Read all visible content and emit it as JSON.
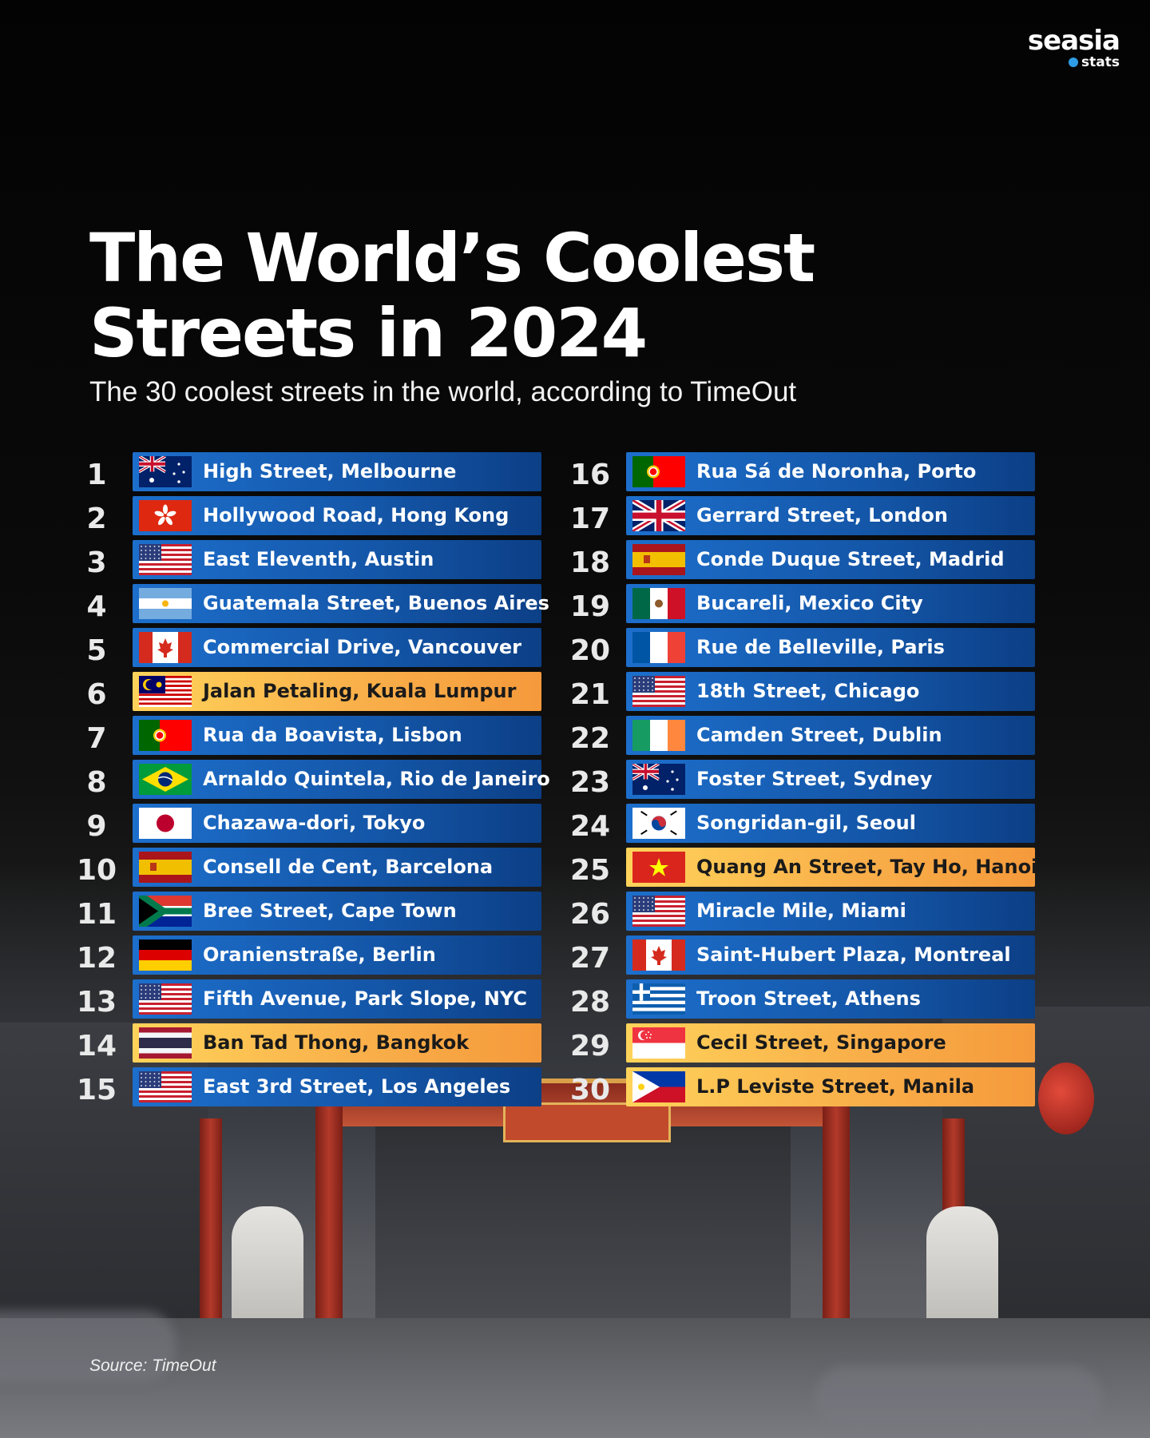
{
  "logo": {
    "brand": "seasia",
    "sub": "stats"
  },
  "header": {
    "title_line1": "The World’s Coolest",
    "title_line2": "Streets in 2024",
    "subtitle": "The 30 coolest streets in the world, according to TimeOut"
  },
  "colors": {
    "bar_blue": "#1456a8",
    "bar_highlight": "#f9b04a",
    "background": "#050505"
  },
  "streets": [
    {
      "rank": "1",
      "name": "High Street, Melbourne",
      "flag": "australia",
      "highlight": false
    },
    {
      "rank": "2",
      "name": "Hollywood Road, Hong Kong",
      "flag": "hong-kong",
      "highlight": false
    },
    {
      "rank": "3",
      "name": "East Eleventh, Austin",
      "flag": "usa",
      "highlight": false
    },
    {
      "rank": "4",
      "name": "Guatemala Street, Buenos Aires",
      "flag": "argentina",
      "highlight": false
    },
    {
      "rank": "5",
      "name": "Commercial Drive, Vancouver",
      "flag": "canada",
      "highlight": false
    },
    {
      "rank": "6",
      "name": "Jalan Petaling, Kuala Lumpur",
      "flag": "malaysia",
      "highlight": true
    },
    {
      "rank": "7",
      "name": "Rua da Boavista, Lisbon",
      "flag": "portugal",
      "highlight": false
    },
    {
      "rank": "8",
      "name": "Arnaldo Quintela, Rio de Janeiro",
      "flag": "brazil",
      "highlight": false
    },
    {
      "rank": "9",
      "name": "Chazawa-dori, Tokyo",
      "flag": "japan",
      "highlight": false
    },
    {
      "rank": "10",
      "name": "Consell de Cent, Barcelona",
      "flag": "spain",
      "highlight": false
    },
    {
      "rank": "11",
      "name": "Bree Street, Cape Town",
      "flag": "south-africa",
      "highlight": false
    },
    {
      "rank": "12",
      "name": "Oranienstraße, Berlin",
      "flag": "germany",
      "highlight": false
    },
    {
      "rank": "13",
      "name": "Fifth Avenue, Park Slope, NYC",
      "flag": "usa",
      "highlight": false
    },
    {
      "rank": "14",
      "name": "Ban Tad Thong, Bangkok",
      "flag": "thailand",
      "highlight": true
    },
    {
      "rank": "15",
      "name": "East 3rd Street, Los Angeles",
      "flag": "usa",
      "highlight": false
    },
    {
      "rank": "16",
      "name": "Rua Sá de Noronha, Porto",
      "flag": "portugal",
      "highlight": false
    },
    {
      "rank": "17",
      "name": "Gerrard Street, London",
      "flag": "uk",
      "highlight": false
    },
    {
      "rank": "18",
      "name": "Conde Duque Street, Madrid",
      "flag": "spain",
      "highlight": false
    },
    {
      "rank": "19",
      "name": "Bucareli, Mexico City",
      "flag": "mexico",
      "highlight": false
    },
    {
      "rank": "20",
      "name": "Rue de Belleville, Paris",
      "flag": "france",
      "highlight": false
    },
    {
      "rank": "21",
      "name": "18th Street, Chicago",
      "flag": "usa",
      "highlight": false
    },
    {
      "rank": "22",
      "name": "Camden Street, Dublin",
      "flag": "ireland",
      "highlight": false
    },
    {
      "rank": "23",
      "name": "Foster Street, Sydney",
      "flag": "australia",
      "highlight": false
    },
    {
      "rank": "24",
      "name": "Songridan-gil, Seoul",
      "flag": "south-korea",
      "highlight": false
    },
    {
      "rank": "25",
      "name": "Quang An Street, Tay Ho, Hanoi",
      "flag": "vietnam",
      "highlight": true
    },
    {
      "rank": "26",
      "name": "Miracle Mile, Miami",
      "flag": "usa",
      "highlight": false
    },
    {
      "rank": "27",
      "name": "Saint-Hubert Plaza, Montreal",
      "flag": "canada",
      "highlight": false
    },
    {
      "rank": "28",
      "name": "Troon Street, Athens",
      "flag": "greece",
      "highlight": false
    },
    {
      "rank": "29",
      "name": "Cecil Street, Singapore",
      "flag": "singapore",
      "highlight": true
    },
    {
      "rank": "30",
      "name": "L.P Leviste Street, Manila",
      "flag": "philippines",
      "highlight": true
    }
  ],
  "footer": {
    "source": "Source: TimeOut"
  }
}
